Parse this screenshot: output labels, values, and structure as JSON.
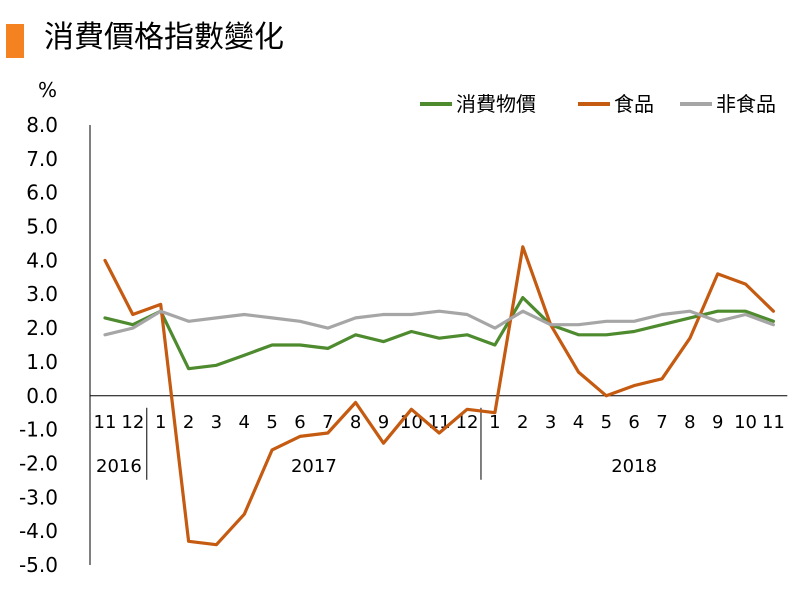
{
  "header": {
    "title": "消費價格指數變化",
    "accent_color": "#f58220"
  },
  "chart_data": {
    "type": "line",
    "title": "消費價格指數變化",
    "ylabel": "%",
    "ylim": [
      -5.0,
      8.0
    ],
    "yticks": [
      "8.0",
      "7.0",
      "6.0",
      "5.0",
      "4.0",
      "3.0",
      "2.0",
      "1.0",
      "0.0",
      "-1.0",
      "-2.0",
      "-3.0",
      "-4.0",
      "-5.0"
    ],
    "x": [
      "11",
      "12",
      "1",
      "2",
      "3",
      "4",
      "5",
      "6",
      "7",
      "8",
      "9",
      "10",
      "11",
      "12",
      "1",
      "2",
      "3",
      "4",
      "5",
      "6",
      "7",
      "8",
      "9",
      "10",
      "11"
    ],
    "years": [
      {
        "label": "2016",
        "start": 0,
        "end": 1
      },
      {
        "label": "2017",
        "start": 2,
        "end": 13
      },
      {
        "label": "2018",
        "start": 14,
        "end": 24
      }
    ],
    "grid": false,
    "legend_position": "top-right",
    "series": [
      {
        "name": "消費物價",
        "color": "#4e8a2e",
        "values": [
          2.3,
          2.1,
          2.5,
          0.8,
          0.9,
          1.2,
          1.5,
          1.5,
          1.4,
          1.8,
          1.6,
          1.9,
          1.7,
          1.8,
          1.5,
          2.9,
          2.1,
          1.8,
          1.8,
          1.9,
          2.1,
          2.3,
          2.5,
          2.5,
          2.2
        ]
      },
      {
        "name": "食品",
        "color": "#c55a11",
        "values": [
          4.0,
          2.4,
          2.7,
          -4.3,
          -4.4,
          -3.5,
          -1.6,
          -1.2,
          -1.1,
          -0.2,
          -1.4,
          -0.4,
          -1.1,
          -0.4,
          -0.5,
          4.4,
          2.1,
          0.7,
          0.0,
          0.3,
          0.5,
          1.7,
          3.6,
          3.3,
          2.5
        ]
      },
      {
        "name": "非食品",
        "color": "#a6a6a6",
        "values": [
          1.8,
          2.0,
          2.5,
          2.2,
          2.3,
          2.4,
          2.3,
          2.2,
          2.0,
          2.3,
          2.4,
          2.4,
          2.5,
          2.4,
          2.0,
          2.5,
          2.1,
          2.1,
          2.2,
          2.2,
          2.4,
          2.5,
          2.2,
          2.4,
          2.1
        ]
      }
    ]
  }
}
